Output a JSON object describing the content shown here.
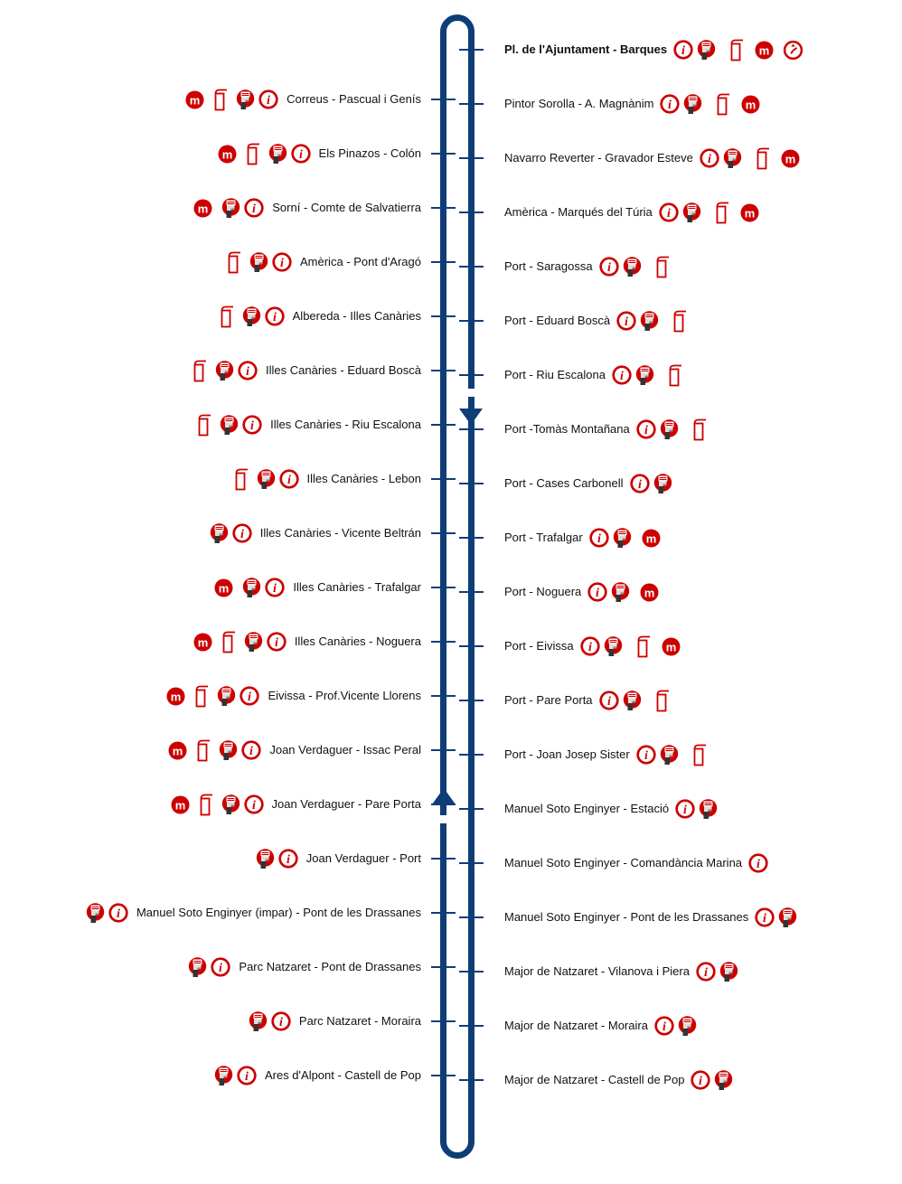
{
  "diagram": {
    "type": "bus-route-loop-diagram",
    "line_color": "#0e3d78",
    "icon_red": "#cc0000",
    "icon_legend": {
      "metro": "metro-connection",
      "shelter": "bus-shelter",
      "machine": "ticket-vending-machine",
      "info": "stop-information",
      "clock": "timetable"
    },
    "direction_arrows": [
      {
        "line": "right",
        "direction": "down"
      },
      {
        "line": "left",
        "direction": "up"
      }
    ],
    "stops_left": [
      {
        "label": "Correus - Pascual i Genís",
        "icons": [
          "metro",
          "shelter",
          "machine",
          "info"
        ]
      },
      {
        "label": "Els Pinazos - Colón",
        "icons": [
          "metro",
          "shelter",
          "machine",
          "info"
        ]
      },
      {
        "label": "Sorní - Comte de Salvatierra",
        "icons": [
          "metro",
          "machine",
          "info"
        ]
      },
      {
        "label": "Amèrica - Pont d'Aragó",
        "icons": [
          "shelter",
          "machine",
          "info"
        ]
      },
      {
        "label": "Albereda - Illes Canàries",
        "icons": [
          "shelter",
          "machine",
          "info"
        ]
      },
      {
        "label": "Illes Canàries - Eduard Boscà",
        "icons": [
          "shelter",
          "machine",
          "info"
        ]
      },
      {
        "label": "Illes Canàries - Riu Escalona",
        "icons": [
          "shelter",
          "machine",
          "info"
        ]
      },
      {
        "label": "Illes Canàries - Lebon",
        "icons": [
          "shelter",
          "machine",
          "info"
        ]
      },
      {
        "label": "Illes Canàries - Vicente Beltrán",
        "icons": [
          "machine",
          "info"
        ]
      },
      {
        "label": "Illes Canàries - Trafalgar",
        "icons": [
          "metro",
          "machine",
          "info"
        ]
      },
      {
        "label": "Illes Canàries - Noguera",
        "icons": [
          "metro",
          "shelter",
          "machine",
          "info"
        ]
      },
      {
        "label": "Eivissa - Prof.Vicente Llorens",
        "icons": [
          "metro",
          "shelter",
          "machine",
          "info"
        ]
      },
      {
        "label": "Joan Verdaguer - Issac Peral",
        "icons": [
          "metro",
          "shelter",
          "machine",
          "info"
        ]
      },
      {
        "label": "Joan Verdaguer - Pare Porta",
        "icons": [
          "metro",
          "shelter",
          "machine",
          "info"
        ]
      },
      {
        "label": "Joan Verdaguer - Port",
        "icons": [
          "machine",
          "info"
        ]
      },
      {
        "label": "Manuel Soto Enginyer (impar) - Pont de les Drassanes",
        "icons": [
          "machine",
          "info"
        ]
      },
      {
        "label": "Parc Natzaret - Pont de Drassanes",
        "icons": [
          "machine",
          "info"
        ]
      },
      {
        "label": "Parc Natzaret - Moraira",
        "icons": [
          "machine",
          "info"
        ]
      },
      {
        "label": "Ares d'Alpont - Castell de Pop",
        "icons": [
          "machine",
          "info"
        ]
      }
    ],
    "stops_right": [
      {
        "label": "Pl. de l'Ajuntament - Barques",
        "bold": true,
        "icons": [
          "info",
          "machine",
          "shelter",
          "metro",
          "clock"
        ]
      },
      {
        "label": "Pintor Sorolla - A. Magnànim",
        "icons": [
          "info",
          "machine",
          "shelter",
          "metro"
        ]
      },
      {
        "label": "Navarro Reverter - Gravador Esteve",
        "icons": [
          "info",
          "machine",
          "shelter",
          "metro"
        ]
      },
      {
        "label": "Amèrica - Marqués del Túria",
        "icons": [
          "info",
          "machine",
          "shelter",
          "metro"
        ]
      },
      {
        "label": "Port - Saragossa",
        "icons": [
          "info",
          "machine",
          "shelter"
        ]
      },
      {
        "label": "Port - Eduard Boscà",
        "icons": [
          "info",
          "machine",
          "shelter"
        ]
      },
      {
        "label": "Port - Riu Escalona",
        "icons": [
          "info",
          "machine",
          "shelter"
        ]
      },
      {
        "label": "Port -Tomàs Montañana",
        "icons": [
          "info",
          "machine",
          "shelter"
        ]
      },
      {
        "label": "Port - Cases Carbonell",
        "icons": [
          "info",
          "machine"
        ]
      },
      {
        "label": "Port - Trafalgar",
        "icons": [
          "info",
          "machine",
          "metro"
        ]
      },
      {
        "label": "Port - Noguera",
        "icons": [
          "info",
          "machine",
          "metro"
        ]
      },
      {
        "label": "Port - Eivissa",
        "icons": [
          "info",
          "machine",
          "shelter",
          "metro"
        ]
      },
      {
        "label": "Port - Pare Porta",
        "icons": [
          "info",
          "machine",
          "shelter"
        ]
      },
      {
        "label": "Port - Joan Josep Sister",
        "icons": [
          "info",
          "machine",
          "shelter"
        ]
      },
      {
        "label": "Manuel Soto Enginyer - Estació",
        "icons": [
          "info",
          "machine"
        ]
      },
      {
        "label": "Manuel Soto Enginyer - Comandància Marina",
        "icons": [
          "info"
        ]
      },
      {
        "label": "Manuel Soto Enginyer - Pont de les Drassanes",
        "icons": [
          "info",
          "machine"
        ]
      },
      {
        "label": "Major de Natzaret - Vilanova i Piera",
        "icons": [
          "info",
          "machine"
        ]
      },
      {
        "label": "Major de Natzaret - Moraira",
        "icons": [
          "info",
          "machine"
        ]
      },
      {
        "label": "Major de Natzaret - Castell de Pop",
        "icons": [
          "info",
          "machine"
        ]
      }
    ]
  }
}
